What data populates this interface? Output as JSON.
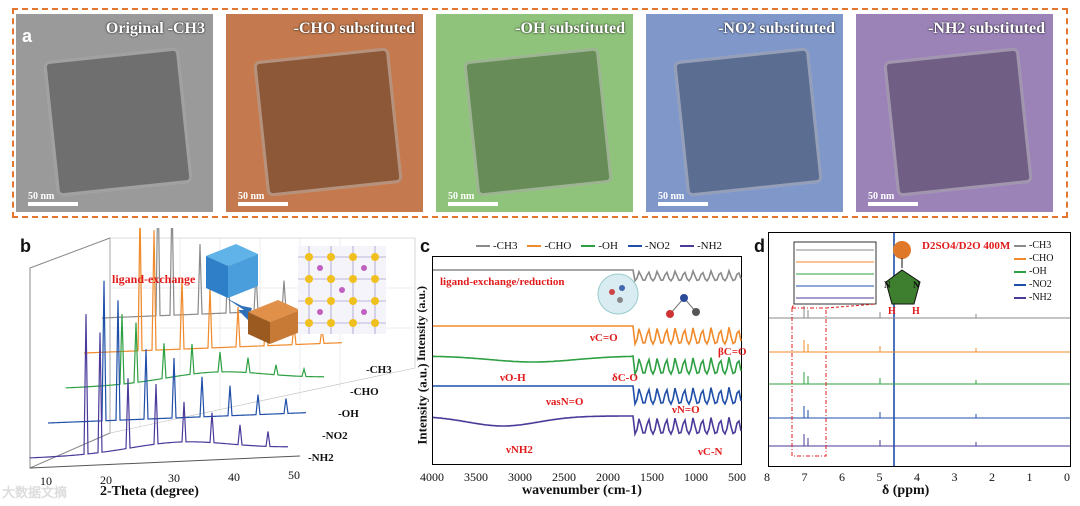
{
  "panel_a": {
    "label": "a",
    "images": [
      {
        "title": "Original -CH3",
        "scale": "50 nm",
        "tint": "#9a9a9a"
      },
      {
        "title": "-CHO substituted",
        "scale": "50 nm",
        "tint": "#c47a4e"
      },
      {
        "title": "-OH substituted",
        "scale": "50 nm",
        "tint": "#8fc27a"
      },
      {
        "title": "-NO2 substituted",
        "scale": "50 nm",
        "tint": "#7f97c9"
      },
      {
        "title": "-NH2 substituted",
        "scale": "50 nm",
        "tint": "#9b83b8"
      }
    ]
  },
  "panel_b": {
    "label": "b",
    "annotation": "ligand-exchange",
    "xlabel": "2-Theta (degree)",
    "xticks": [
      "10",
      "20",
      "30",
      "40",
      "50"
    ],
    "series": [
      "-CH3",
      "-CHO",
      "-OH",
      "-NO2",
      "-NH2"
    ]
  },
  "panel_c": {
    "label": "c",
    "legend": [
      "-CH3",
      "-CHO",
      "-OH",
      "-NO2",
      "-NH2"
    ],
    "annotation": "ligand-exchange/reduction",
    "ylabel_top": "Intensity (a.u.)",
    "ylabel": "Intensity (a.u.)",
    "xlabel": "wavenumber (cm-1)",
    "xticks": [
      "4000",
      "3500",
      "3000",
      "2500",
      "2000",
      "1500",
      "1000",
      "500"
    ],
    "peaks": [
      "νC=O",
      "νO-H",
      "δC-O",
      "βC=O",
      "νasN=O",
      "νN=O",
      "νNH2",
      "νC-N"
    ]
  },
  "panel_d": {
    "label": "d",
    "solvent": "D2SO4/D2O 400M",
    "legend": [
      "-CH3",
      "-CHO",
      "-OH",
      "-NO2",
      "-NH2"
    ],
    "xlabel": "δ (ppm)",
    "xticks": [
      "8",
      "7",
      "6",
      "5",
      "4",
      "3",
      "2",
      "1",
      "0"
    ],
    "molecule_atoms": [
      "N",
      "N",
      "H",
      "H"
    ]
  },
  "watermark": "大数据文摘",
  "colors": {
    "ch3": "#8a8a8a",
    "cho": "#f08a2a",
    "oh": "#2ea043",
    "no2": "#1f4fa8",
    "nh2": "#4b3a9a",
    "accent": "#e5762f"
  }
}
